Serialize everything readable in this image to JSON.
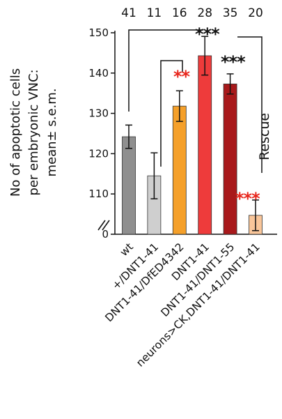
{
  "chart_data": {
    "type": "bar",
    "ylabel": [
      "No of apoptotic cells",
      "per embryonic VNC:",
      "mean± s.e.m."
    ],
    "ylim": [
      100,
      150
    ],
    "y_ticks": [
      "0",
      "110",
      "120",
      "130",
      "140",
      "150"
    ],
    "axis_break": true,
    "categories": [
      "wt",
      "+/DNT1-41",
      "DNT1-41/DfED4342",
      "DNT1-41",
      "DNT1-41/DNT1-55",
      "neurons>CK,DNT1-41/DNT1-41"
    ],
    "n": [
      "41",
      "11",
      "16",
      "28",
      "35",
      "20"
    ],
    "values": [
      124.2,
      114.5,
      131.8,
      144.3,
      137.3,
      104.7
    ],
    "errors": [
      2.9,
      5.7,
      3.8,
      4.8,
      2.5,
      3.8
    ],
    "bar_colors": [
      "#8f8f8f",
      "#cfcfcf",
      "#f5a02a",
      "#ee3b3b",
      "#a8191b",
      "#f9c69a"
    ],
    "annotations": {
      "sig_black_top": "***",
      "sig_black_mid": "***",
      "sig_red_dfed": "**",
      "sig_red_rescue": "***",
      "rescue_label": "Rescue"
    },
    "colors": {
      "black_star": "#111111",
      "red_star": "#e8261c"
    }
  }
}
